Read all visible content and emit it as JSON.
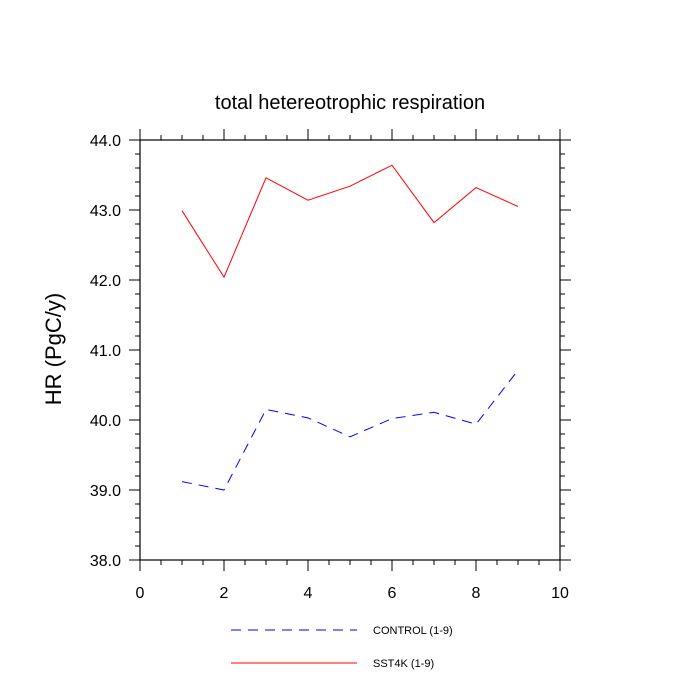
{
  "chart_data": {
    "type": "line",
    "title": "total hetereotrophic respiration",
    "xlabel": "",
    "ylabel": "HR  (PgC/y)",
    "xlim": [
      0,
      10
    ],
    "ylim": [
      38.0,
      44.0
    ],
    "x_ticks": [
      0,
      2,
      4,
      6,
      8,
      10
    ],
    "x_tick_labels": [
      "0",
      "2",
      "4",
      "6",
      "8",
      "10"
    ],
    "y_ticks": [
      38.0,
      39.0,
      40.0,
      41.0,
      42.0,
      43.0,
      44.0
    ],
    "y_tick_labels": [
      "38.0",
      "39.0",
      "40.0",
      "41.0",
      "42.0",
      "43.0",
      "44.0"
    ],
    "grid": false,
    "legend_position": "bottom",
    "x": [
      1,
      2,
      3,
      4,
      5,
      6,
      7,
      8,
      9
    ],
    "series": [
      {
        "name": "CONTROL (1-9)",
        "color": "#0000ff",
        "dash": "dashed",
        "values": [
          39.12,
          39.0,
          40.15,
          40.03,
          39.76,
          40.02,
          40.11,
          39.94,
          40.71
        ]
      },
      {
        "name": "SST4K (1-9)",
        "color": "#ff0000",
        "dash": "solid",
        "values": [
          42.99,
          42.04,
          43.46,
          43.14,
          43.34,
          43.64,
          42.82,
          43.32,
          43.05
        ]
      }
    ]
  }
}
